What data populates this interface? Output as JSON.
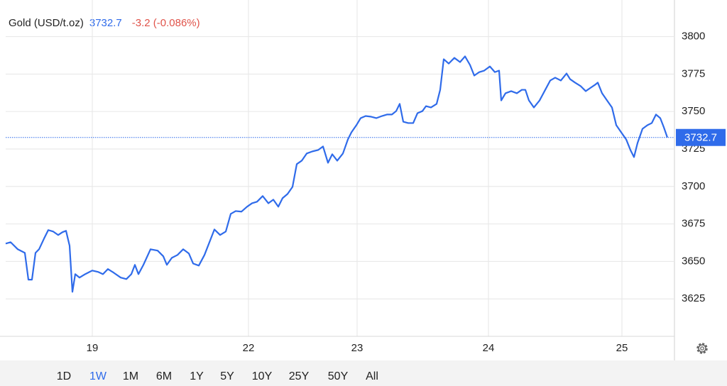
{
  "chart_data": {
    "type": "line",
    "title": "Gold (USD/t.oz)",
    "last_price": 3732.7,
    "change": "-3.2 (-0.086%)",
    "ranges": [
      "1D",
      "1W",
      "1M",
      "6M",
      "1Y",
      "5Y",
      "10Y",
      "25Y",
      "50Y",
      "All"
    ],
    "selected_range": "1W",
    "grid": true,
    "xlim": [
      0,
      233
    ],
    "xticks": [
      {
        "value": 30.5,
        "label": "19"
      },
      {
        "value": 85.5,
        "label": "22"
      },
      {
        "value": 123.75,
        "label": "23"
      },
      {
        "value": 170,
        "label": "24"
      },
      {
        "value": 217,
        "label": "25"
      }
    ],
    "ylim": [
      3600,
      3823
    ],
    "yticks": [
      3625,
      3650,
      3675,
      3700,
      3725,
      3750,
      3775,
      3800
    ],
    "x": [
      0,
      1.75,
      4.25,
      6.75,
      8,
      9.25,
      10.5,
      11.75,
      13.5,
      15,
      16.75,
      18.5,
      20,
      21.25,
      22.5,
      23.5,
      24.5,
      26,
      28,
      30.5,
      32.5,
      34.25,
      36,
      38,
      40.5,
      42.5,
      44.25,
      45.5,
      46.75,
      48.5,
      51,
      53.5,
      55.5,
      56.75,
      58.5,
      60.5,
      62.5,
      64.5,
      66,
      68,
      70,
      71.75,
      73.5,
      75.5,
      77.5,
      79.25,
      81,
      83,
      85,
      86.75,
      88.5,
      90.5,
      92.5,
      94.25,
      96,
      97.5,
      99.25,
      101,
      102.5,
      104.25,
      106,
      108,
      110,
      111.75,
      113.5,
      115,
      116.75,
      118.75,
      120.5,
      121.75,
      123.5,
      125,
      126.75,
      128.5,
      130.5,
      132.5,
      134.25,
      136,
      137.5,
      138.75,
      140,
      141.75,
      143.5,
      145,
      146.75,
      148,
      149.75,
      151.75,
      153,
      154.25,
      156,
      158,
      160,
      161.75,
      163.5,
      165,
      166.75,
      168.5,
      170.5,
      172.25,
      173.75,
      174.5,
      176,
      178,
      180,
      181.75,
      183,
      184.25,
      186,
      188,
      190,
      191.75,
      193.5,
      195.5,
      197.5,
      198.75,
      200.5,
      202.5,
      204.25,
      206,
      207.5,
      208.5,
      210,
      211.75,
      213.5,
      215,
      216.75,
      218.5,
      220,
      221.25,
      222.5,
      224.25,
      226,
      227.5,
      229,
      230.5,
      231.75,
      233
    ],
    "series": [
      {
        "name": "Gold",
        "color": "#2f6bea",
        "values": [
          3661.9,
          3662.8,
          3658.1,
          3655.7,
          3637.8,
          3637.8,
          3655.7,
          3658.1,
          3665.2,
          3670.9,
          3669.9,
          3667.6,
          3669.5,
          3670.4,
          3660.5,
          3629.7,
          3641.5,
          3639.2,
          3641.5,
          3643.9,
          3643.0,
          3641.5,
          3644.9,
          3642.5,
          3639.2,
          3638.2,
          3641.5,
          3647.7,
          3641.5,
          3647.7,
          3658.1,
          3657.2,
          3653.4,
          3647.7,
          3652.4,
          3654.3,
          3658.1,
          3655.3,
          3648.6,
          3647.2,
          3654.3,
          3662.8,
          3671.3,
          3667.6,
          3669.9,
          3681.7,
          3683.6,
          3683.2,
          3686.5,
          3688.8,
          3689.8,
          3693.6,
          3688.8,
          3691.2,
          3686.5,
          3692.2,
          3695.0,
          3699.7,
          3714.9,
          3717.2,
          3722.0,
          3723.4,
          3724.3,
          3726.7,
          3715.8,
          3721.5,
          3717.2,
          3722.0,
          3731.4,
          3736.1,
          3740.9,
          3745.6,
          3747.0,
          3746.6,
          3745.6,
          3747.0,
          3748.0,
          3748.0,
          3750.3,
          3755.1,
          3743.2,
          3742.3,
          3742.3,
          3748.9,
          3750.3,
          3753.6,
          3752.7,
          3755.1,
          3764.5,
          3784.9,
          3782.0,
          3785.8,
          3783.0,
          3786.8,
          3781.1,
          3774.0,
          3776.3,
          3777.3,
          3780.1,
          3776.3,
          3777.3,
          3757.4,
          3762.2,
          3763.6,
          3762.2,
          3764.5,
          3764.5,
          3757.4,
          3752.7,
          3757.4,
          3764.5,
          3770.7,
          3772.6,
          3770.7,
          3775.4,
          3771.6,
          3769.3,
          3766.9,
          3763.6,
          3765.9,
          3767.8,
          3769.3,
          3762.2,
          3757.4,
          3752.7,
          3740.9,
          3736.1,
          3731.4,
          3724.3,
          3719.6,
          3729.0,
          3738.5,
          3740.9,
          3742.3,
          3748.0,
          3745.6,
          3739.5,
          3732.7
        ]
      }
    ]
  }
}
